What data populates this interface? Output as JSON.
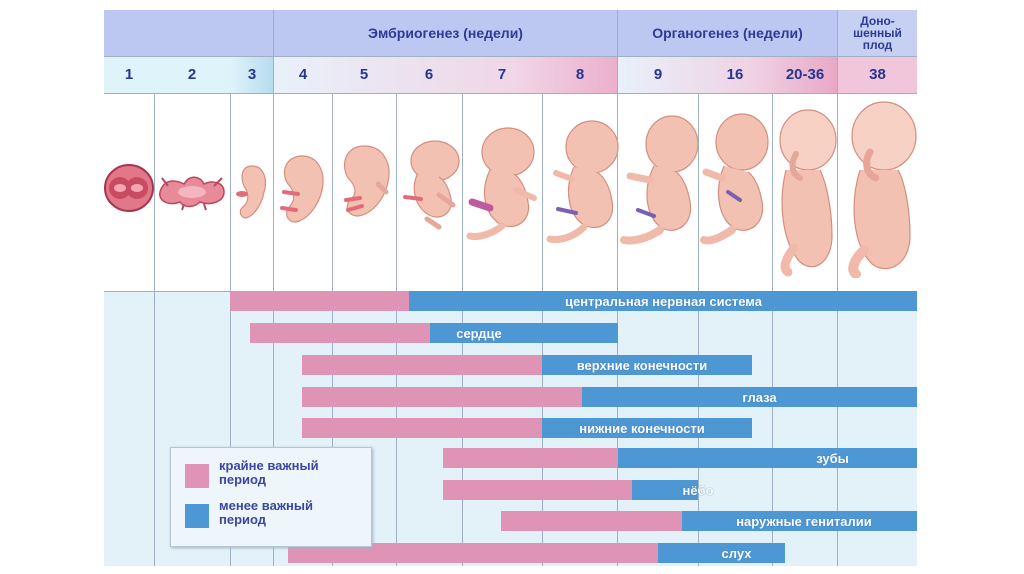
{
  "headers": {
    "embryogenesis": "Эмбриогенез (недели)",
    "organogenesis": "Органогенез (недели)",
    "fullterm_line1": "Доно-",
    "fullterm_line2": "шенный",
    "fullterm_line3": "плод"
  },
  "weeks": [
    "1",
    "2",
    "3",
    "4",
    "5",
    "6",
    "7",
    "8",
    "9",
    "16",
    "20-36",
    "38"
  ],
  "stages": [
    {
      "week": "1",
      "name": "zygote"
    },
    {
      "week": "2",
      "name": "embryonic-disc"
    },
    {
      "week": "3",
      "name": "embryo"
    },
    {
      "week": "4",
      "name": "embryo"
    },
    {
      "week": "5",
      "name": "embryo"
    },
    {
      "week": "6",
      "name": "embryo"
    },
    {
      "week": "7",
      "name": "embryo"
    },
    {
      "week": "8",
      "name": "embryo"
    },
    {
      "week": "9",
      "name": "fetus"
    },
    {
      "week": "16",
      "name": "fetus"
    },
    {
      "week": "20-36",
      "name": "fetus"
    },
    {
      "week": "38",
      "name": "full-term-fetus"
    }
  ],
  "bars": [
    {
      "label": "центральная нервная система",
      "critical_weeks": "3-6",
      "less_critical_weeks": "6-38"
    },
    {
      "label": "сердце",
      "critical_weeks": "3-6",
      "less_critical_weeks": "6-8"
    },
    {
      "label": "верхние конечности",
      "critical_weeks": "4-8",
      "less_critical_weeks": "8-9"
    },
    {
      "label": "глаза",
      "critical_weeks": "4-8",
      "less_critical_weeks": "8-38"
    },
    {
      "label": "нижние конечности",
      "critical_weeks": "4-8",
      "less_critical_weeks": "8-9"
    },
    {
      "label": "зубы",
      "critical_weeks": "7-9",
      "less_critical_weeks": "9-38"
    },
    {
      "label": "нёбо",
      "critical_weeks": "7-9",
      "less_critical_weeks": "9-16"
    },
    {
      "label": "наружные гениталии",
      "critical_weeks": "7-16",
      "less_critical_weeks": "16-38"
    },
    {
      "label": "слух",
      "critical_weeks": "4-9",
      "less_critical_weeks": "9-20"
    }
  ],
  "legend": {
    "critical_line1": "крайне важный",
    "critical_line2": "период",
    "less_line1": "менее важный",
    "less_line2": "период"
  },
  "colors": {
    "critical": "#df93b5",
    "less_critical": "#4d97d4",
    "header": "#bcc8f1",
    "background": "#e3f1f8"
  }
}
